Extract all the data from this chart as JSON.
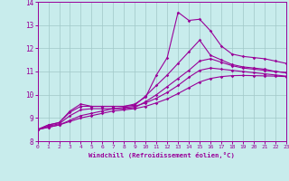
{
  "xlabel": "Windchill (Refroidissement éolien,°C)",
  "ylabel": "",
  "xlim": [
    0,
    23
  ],
  "ylim": [
    8,
    14
  ],
  "yticks": [
    8,
    9,
    10,
    11,
    12,
    13,
    14
  ],
  "xticks": [
    0,
    1,
    2,
    3,
    4,
    5,
    6,
    7,
    8,
    9,
    10,
    11,
    12,
    13,
    14,
    15,
    16,
    17,
    18,
    19,
    20,
    21,
    22,
    23
  ],
  "bg_color": "#c8ecec",
  "grid_color": "#a0c8c8",
  "line_color": "#990099",
  "line_width": 0.8,
  "marker": "D",
  "marker_size": 1.8,
  "lines": [
    [
      8.5,
      8.7,
      8.8,
      9.3,
      9.6,
      9.5,
      9.5,
      9.5,
      9.5,
      9.6,
      9.9,
      10.85,
      11.6,
      13.55,
      13.2,
      13.25,
      12.75,
      12.1,
      11.75,
      11.65,
      11.6,
      11.55,
      11.45,
      11.35
    ],
    [
      8.5,
      8.7,
      8.8,
      9.25,
      9.5,
      9.5,
      9.5,
      9.5,
      9.5,
      9.55,
      9.95,
      10.4,
      10.85,
      11.35,
      11.85,
      12.35,
      11.7,
      11.5,
      11.3,
      11.2,
      11.15,
      11.1,
      11.0,
      10.95
    ],
    [
      8.5,
      8.65,
      8.75,
      9.1,
      9.35,
      9.4,
      9.4,
      9.4,
      9.4,
      9.45,
      9.7,
      10.0,
      10.35,
      10.7,
      11.05,
      11.45,
      11.55,
      11.4,
      11.25,
      11.15,
      11.1,
      11.05,
      11.0,
      10.95
    ],
    [
      8.5,
      8.6,
      8.7,
      8.9,
      9.1,
      9.2,
      9.3,
      9.4,
      9.45,
      9.5,
      9.65,
      9.85,
      10.1,
      10.4,
      10.75,
      11.05,
      11.15,
      11.1,
      11.05,
      11.0,
      10.95,
      10.9,
      10.85,
      10.8
    ],
    [
      8.5,
      8.6,
      8.7,
      8.85,
      9.0,
      9.1,
      9.2,
      9.3,
      9.35,
      9.4,
      9.5,
      9.65,
      9.82,
      10.05,
      10.3,
      10.55,
      10.7,
      10.78,
      10.82,
      10.83,
      10.82,
      10.81,
      10.8,
      10.78
    ]
  ]
}
